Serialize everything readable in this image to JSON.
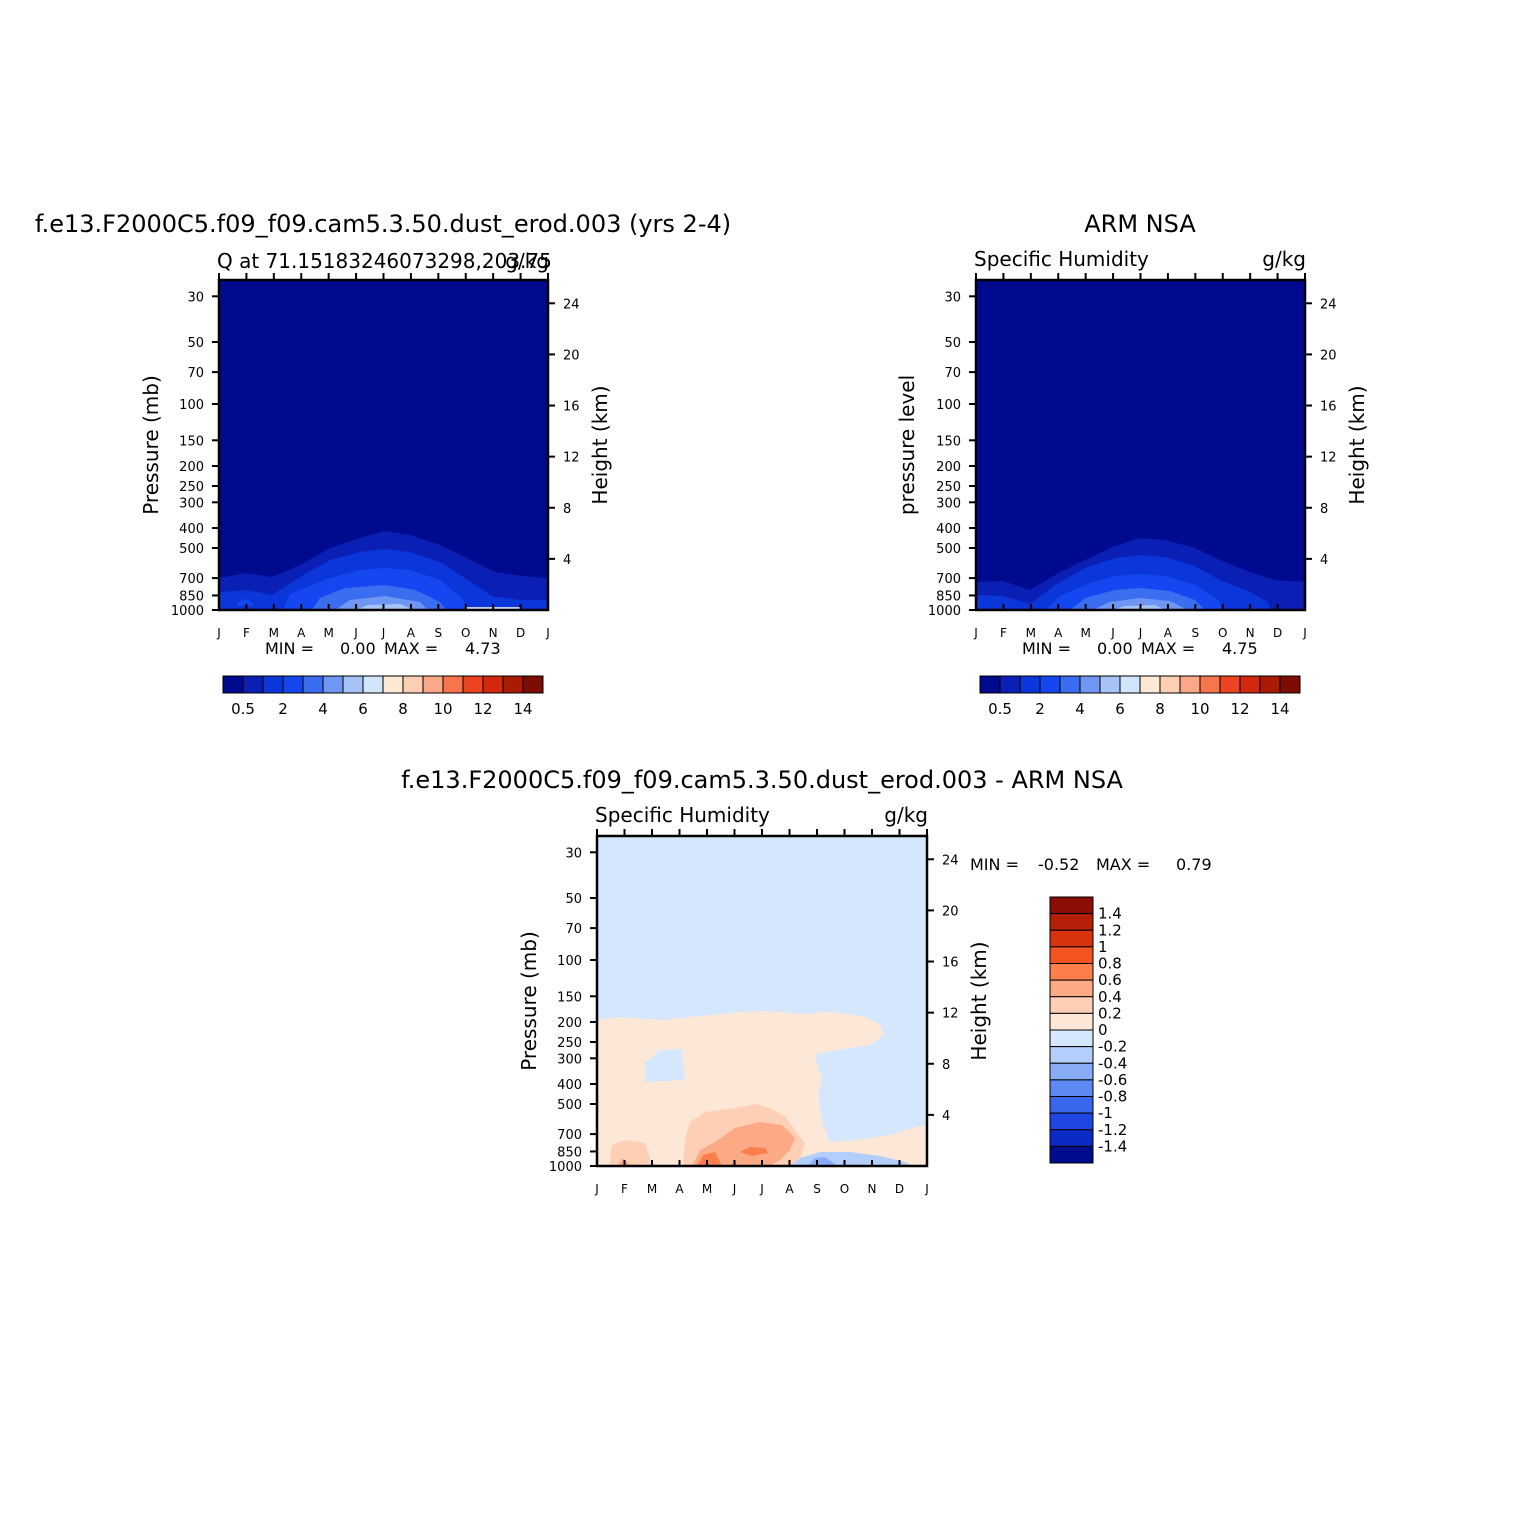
{
  "chart_data": [
    {
      "type": "heatmap",
      "title": "f.e13.F2000C5.f09_f09.cam5.3.50.dust_erod.003 (yrs 2-4)",
      "subtitle": "Q at 71.15183246073298,203.75",
      "units": "g/kg",
      "ylabel": "Pressure (mb)",
      "y2label": "Height (km)",
      "x_ticks": [
        "J",
        "F",
        "M",
        "A",
        "M",
        "J",
        "J",
        "A",
        "S",
        "O",
        "N",
        "D",
        "J"
      ],
      "y_ticks": [
        30,
        50,
        70,
        100,
        150,
        200,
        250,
        300,
        400,
        500,
        700,
        850,
        1000
      ],
      "y_scale": "log",
      "y2_ticks": [
        24,
        20,
        16,
        12,
        8,
        4
      ],
      "stats": {
        "min_label": "MIN =",
        "min": "0.00",
        "max_label": "MAX =",
        "max": "4.73"
      },
      "colorbar": {
        "orientation": "horizontal",
        "labels": [
          "0.5",
          "2",
          "4",
          "6",
          "8",
          "10",
          "12",
          "14"
        ],
        "colors": [
          "#000a8f",
          "#0a1fb4",
          "#0a36da",
          "#1447ef",
          "#3a6df0",
          "#6e96f2",
          "#a5c3f6",
          "#d2e6fb",
          "#fde8d4",
          "#fccfb2",
          "#fba889",
          "#f7754c",
          "#ec4422",
          "#d1280e",
          "#a91b05",
          "#7d0d02"
        ]
      }
    },
    {
      "type": "heatmap",
      "title": "ARM NSA",
      "subtitle": "Specific Humidity",
      "units": "g/kg",
      "ylabel": "pressure level",
      "y2label": "Height (km)",
      "x_ticks": [
        "J",
        "F",
        "M",
        "A",
        "M",
        "J",
        "J",
        "A",
        "S",
        "O",
        "N",
        "D",
        "J"
      ],
      "y_ticks": [
        30,
        50,
        70,
        100,
        150,
        200,
        250,
        300,
        400,
        500,
        700,
        850,
        1000
      ],
      "y_scale": "log",
      "y2_ticks": [
        24,
        20,
        16,
        12,
        8,
        4
      ],
      "stats": {
        "min_label": "MIN =",
        "min": "0.00",
        "max_label": "MAX =",
        "max": "4.75"
      },
      "colorbar": {
        "orientation": "horizontal",
        "labels": [
          "0.5",
          "2",
          "4",
          "6",
          "8",
          "10",
          "12",
          "14"
        ],
        "colors": [
          "#000a8f",
          "#0a1fb4",
          "#0a36da",
          "#1447ef",
          "#3a6df0",
          "#6e96f2",
          "#a5c3f6",
          "#d2e6fb",
          "#fde8d4",
          "#fccfb2",
          "#fba889",
          "#f7754c",
          "#ec4422",
          "#d1280e",
          "#a91b05",
          "#7d0d02"
        ]
      }
    },
    {
      "type": "heatmap",
      "title": "f.e13.F2000C5.f09_f09.cam5.3.50.dust_erod.003 - ARM NSA",
      "subtitle": "Specific Humidity",
      "units": "g/kg",
      "ylabel": "Pressure (mb)",
      "y2label": "Height (km)",
      "x_ticks": [
        "J",
        "F",
        "M",
        "A",
        "M",
        "J",
        "J",
        "A",
        "S",
        "O",
        "N",
        "D",
        "J"
      ],
      "y_ticks": [
        30,
        50,
        70,
        100,
        150,
        200,
        250,
        300,
        400,
        500,
        700,
        850,
        1000
      ],
      "y_scale": "log",
      "y2_ticks": [
        24,
        20,
        16,
        12,
        8,
        4
      ],
      "stats": {
        "min_label": "MIN =",
        "min": "-0.52",
        "max_label": "MAX =",
        "max": "0.79"
      },
      "colorbar": {
        "orientation": "vertical",
        "labels": [
          "1.4",
          "1.2",
          "1",
          "0.8",
          "0.6",
          "0.4",
          "0.2",
          "0",
          "-0.2",
          "-0.4",
          "-0.6",
          "-0.8",
          "-1",
          "-1.2",
          "-1.4"
        ],
        "colors": [
          "#8b0f04",
          "#b52008",
          "#d8330d",
          "#f45520",
          "#fb7e4c",
          "#fcaa85",
          "#fdd0b6",
          "#fde8d8",
          "#d4e7fd",
          "#b3cefa",
          "#88adf6",
          "#5e88f2",
          "#3a66ee",
          "#1f45e2",
          "#0c2bc4",
          "#000c8e"
        ]
      }
    }
  ]
}
